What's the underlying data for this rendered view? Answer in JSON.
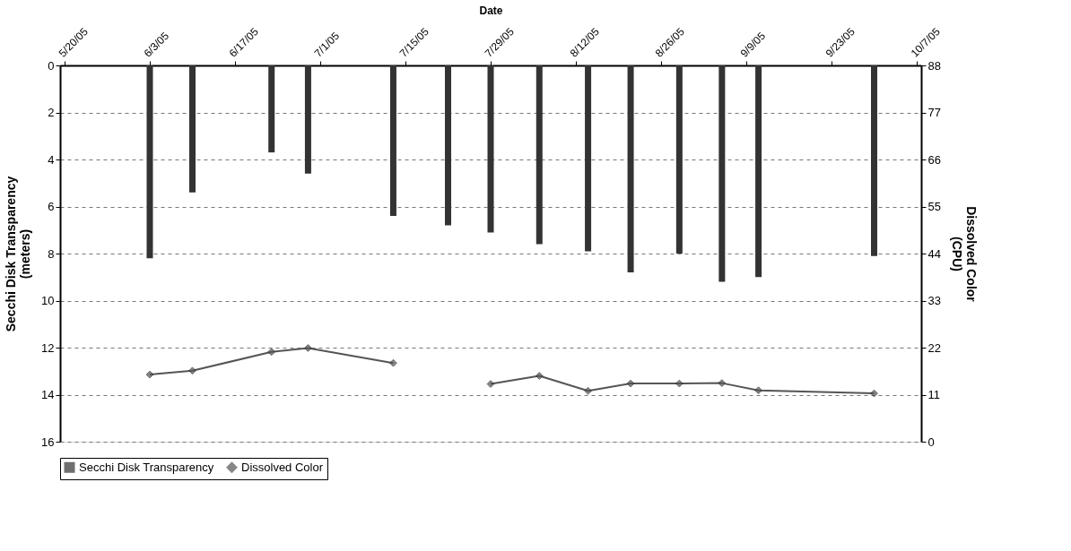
{
  "chart_data": {
    "type": "bar",
    "xlabel": "Date",
    "ylabel": "Secchi Disk Transparency (meters)",
    "y2label": "Dissolved Color (CPU)",
    "x": [
      "2005-06-03",
      "2005-06-10",
      "2005-06-23",
      "2005-06-29",
      "2005-07-13",
      "2005-07-22",
      "2005-07-29",
      "2005-08-06",
      "2005-08-14",
      "2005-08-21",
      "2005-08-29",
      "2005-09-05",
      "2005-09-11",
      "2005-09-30"
    ],
    "series": [
      {
        "name": "Secchi Disk Transparency",
        "color": "#333333",
        "values": [
          8.2,
          5.4,
          3.7,
          4.6,
          6.4,
          6.8,
          7.1,
          7.6,
          7.9,
          8.8,
          8.0,
          9.2,
          9.0,
          8.1
        ]
      },
      {
        "name": "Dissolved Color",
        "type": "line",
        "axis": "y2",
        "color": "#555555",
        "marker": "diamond",
        "values": [
          15.7,
          16.6,
          21.0,
          21.9,
          18.4,
          null,
          13.5,
          15.4,
          11.9,
          13.6,
          13.6,
          13.7,
          12.0,
          11.3
        ]
      }
    ],
    "xlim": [
      "2005-05-20",
      "2005-10-07"
    ],
    "xticks": [
      {
        "value": "2005-05-20",
        "label": "5/20/05"
      },
      {
        "value": "2005-06-03",
        "label": "6/3/05"
      },
      {
        "value": "2005-06-17",
        "label": "6/17/05"
      },
      {
        "value": "2005-07-01",
        "label": "7/1/05"
      },
      {
        "value": "2005-07-15",
        "label": "7/15/05"
      },
      {
        "value": "2005-07-29",
        "label": "7/29/05"
      },
      {
        "value": "2005-08-12",
        "label": "8/12/05"
      },
      {
        "value": "2005-08-26",
        "label": "8/26/05"
      },
      {
        "value": "2005-09-09",
        "label": "9/9/05"
      },
      {
        "value": "2005-09-23",
        "label": "9/23/05"
      },
      {
        "value": "2005-10-07",
        "label": "10/7/05"
      }
    ],
    "ylim": [
      16,
      0
    ],
    "yticks": [
      0,
      2,
      4,
      6,
      8,
      10,
      12,
      14,
      16
    ],
    "y2lim": [
      0,
      88
    ],
    "y2ticks": [
      0,
      11,
      22,
      33,
      44,
      55,
      66,
      77,
      88
    ],
    "grid": "y",
    "legend": "bottom"
  }
}
